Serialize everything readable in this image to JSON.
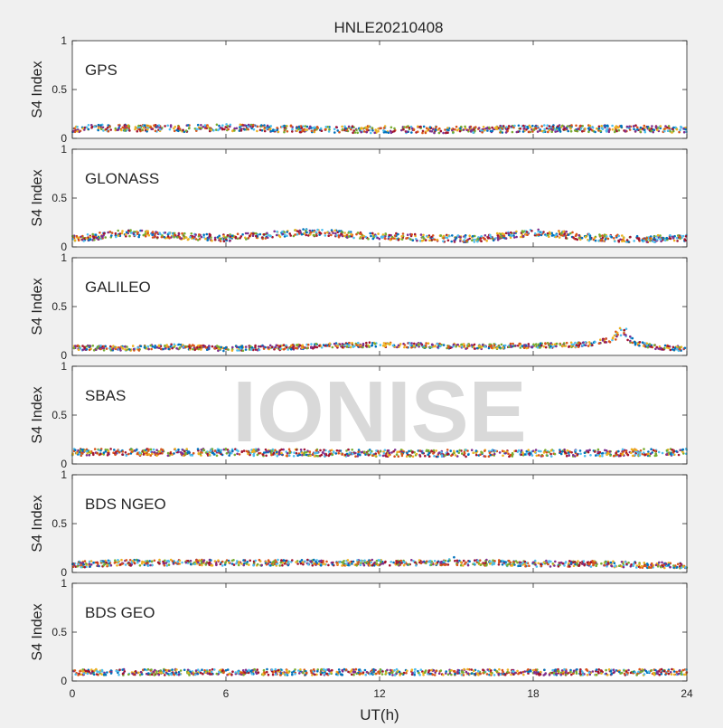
{
  "chart_data": {
    "type": "scatter",
    "title": "HNLE20210408",
    "xlabel": "UT(h)",
    "ylabel": "S4 Index",
    "watermark": "IONISE",
    "xlim": [
      0,
      24
    ],
    "ylim": [
      0,
      1
    ],
    "x_ticks": [
      "0",
      "6",
      "12",
      "18",
      "24"
    ],
    "y_ticks": [
      "0",
      "0.5",
      "1"
    ],
    "grid": false,
    "series_colors": [
      "#0072bd",
      "#d95319",
      "#edb120",
      "#7e2f8e",
      "#77ac30",
      "#4dbeee",
      "#a2142f"
    ],
    "panels": [
      {
        "name": "GPS",
        "level_points": [
          [
            0,
            0.1
          ],
          [
            2,
            0.11
          ],
          [
            4,
            0.1
          ],
          [
            6,
            0.11
          ],
          [
            8,
            0.1
          ],
          [
            10,
            0.09
          ],
          [
            12,
            0.09
          ],
          [
            14,
            0.09
          ],
          [
            16,
            0.09
          ],
          [
            18,
            0.1
          ],
          [
            20,
            0.1
          ],
          [
            22,
            0.1
          ],
          [
            24,
            0.09
          ]
        ],
        "spread": 0.035
      },
      {
        "name": "GLONASS",
        "level_points": [
          [
            0,
            0.08
          ],
          [
            1,
            0.11
          ],
          [
            2,
            0.14
          ],
          [
            3,
            0.13
          ],
          [
            4,
            0.11
          ],
          [
            5,
            0.1
          ],
          [
            6,
            0.09
          ],
          [
            7,
            0.11
          ],
          [
            8,
            0.13
          ],
          [
            9,
            0.15
          ],
          [
            10,
            0.14
          ],
          [
            11,
            0.12
          ],
          [
            12,
            0.11
          ],
          [
            14,
            0.09
          ],
          [
            16,
            0.08
          ],
          [
            17,
            0.12
          ],
          [
            18,
            0.15
          ],
          [
            19,
            0.13
          ],
          [
            20,
            0.1
          ],
          [
            22,
            0.08
          ],
          [
            24,
            0.09
          ]
        ],
        "spread": 0.035,
        "spike": null
      },
      {
        "name": "GALILEO",
        "level_points": [
          [
            0,
            0.08
          ],
          [
            2,
            0.07
          ],
          [
            4,
            0.09
          ],
          [
            6,
            0.07
          ],
          [
            8,
            0.08
          ],
          [
            10,
            0.1
          ],
          [
            12,
            0.11
          ],
          [
            14,
            0.1
          ],
          [
            16,
            0.09
          ],
          [
            18,
            0.1
          ],
          [
            20,
            0.11
          ],
          [
            21.5,
            0.18
          ],
          [
            22,
            0.12
          ],
          [
            23,
            0.08
          ],
          [
            24,
            0.07
          ]
        ],
        "spread": 0.025,
        "spike": {
          "x": 21.5,
          "y": 0.3,
          "width": 0.5
        }
      },
      {
        "name": "SBAS",
        "level_points": [
          [
            0,
            0.12
          ],
          [
            6,
            0.12
          ],
          [
            12,
            0.11
          ],
          [
            18,
            0.11
          ],
          [
            24,
            0.12
          ]
        ],
        "spread": 0.035,
        "spike": null
      },
      {
        "name": "BDS NGEO",
        "level_points": [
          [
            0,
            0.08
          ],
          [
            2,
            0.1
          ],
          [
            4,
            0.1
          ],
          [
            6,
            0.1
          ],
          [
            8,
            0.1
          ],
          [
            10,
            0.1
          ],
          [
            12,
            0.1
          ],
          [
            14,
            0.1
          ],
          [
            16,
            0.1
          ],
          [
            18,
            0.09
          ],
          [
            20,
            0.09
          ],
          [
            22,
            0.08
          ],
          [
            24,
            0.07
          ]
        ],
        "spread": 0.03,
        "spike": {
          "x": 14.8,
          "y": 0.26,
          "width": 0.15
        }
      },
      {
        "name": "BDS GEO",
        "level_points": [
          [
            0,
            0.09
          ],
          [
            12,
            0.09
          ],
          [
            24,
            0.09
          ]
        ],
        "spread": 0.03,
        "spike": null
      }
    ]
  }
}
